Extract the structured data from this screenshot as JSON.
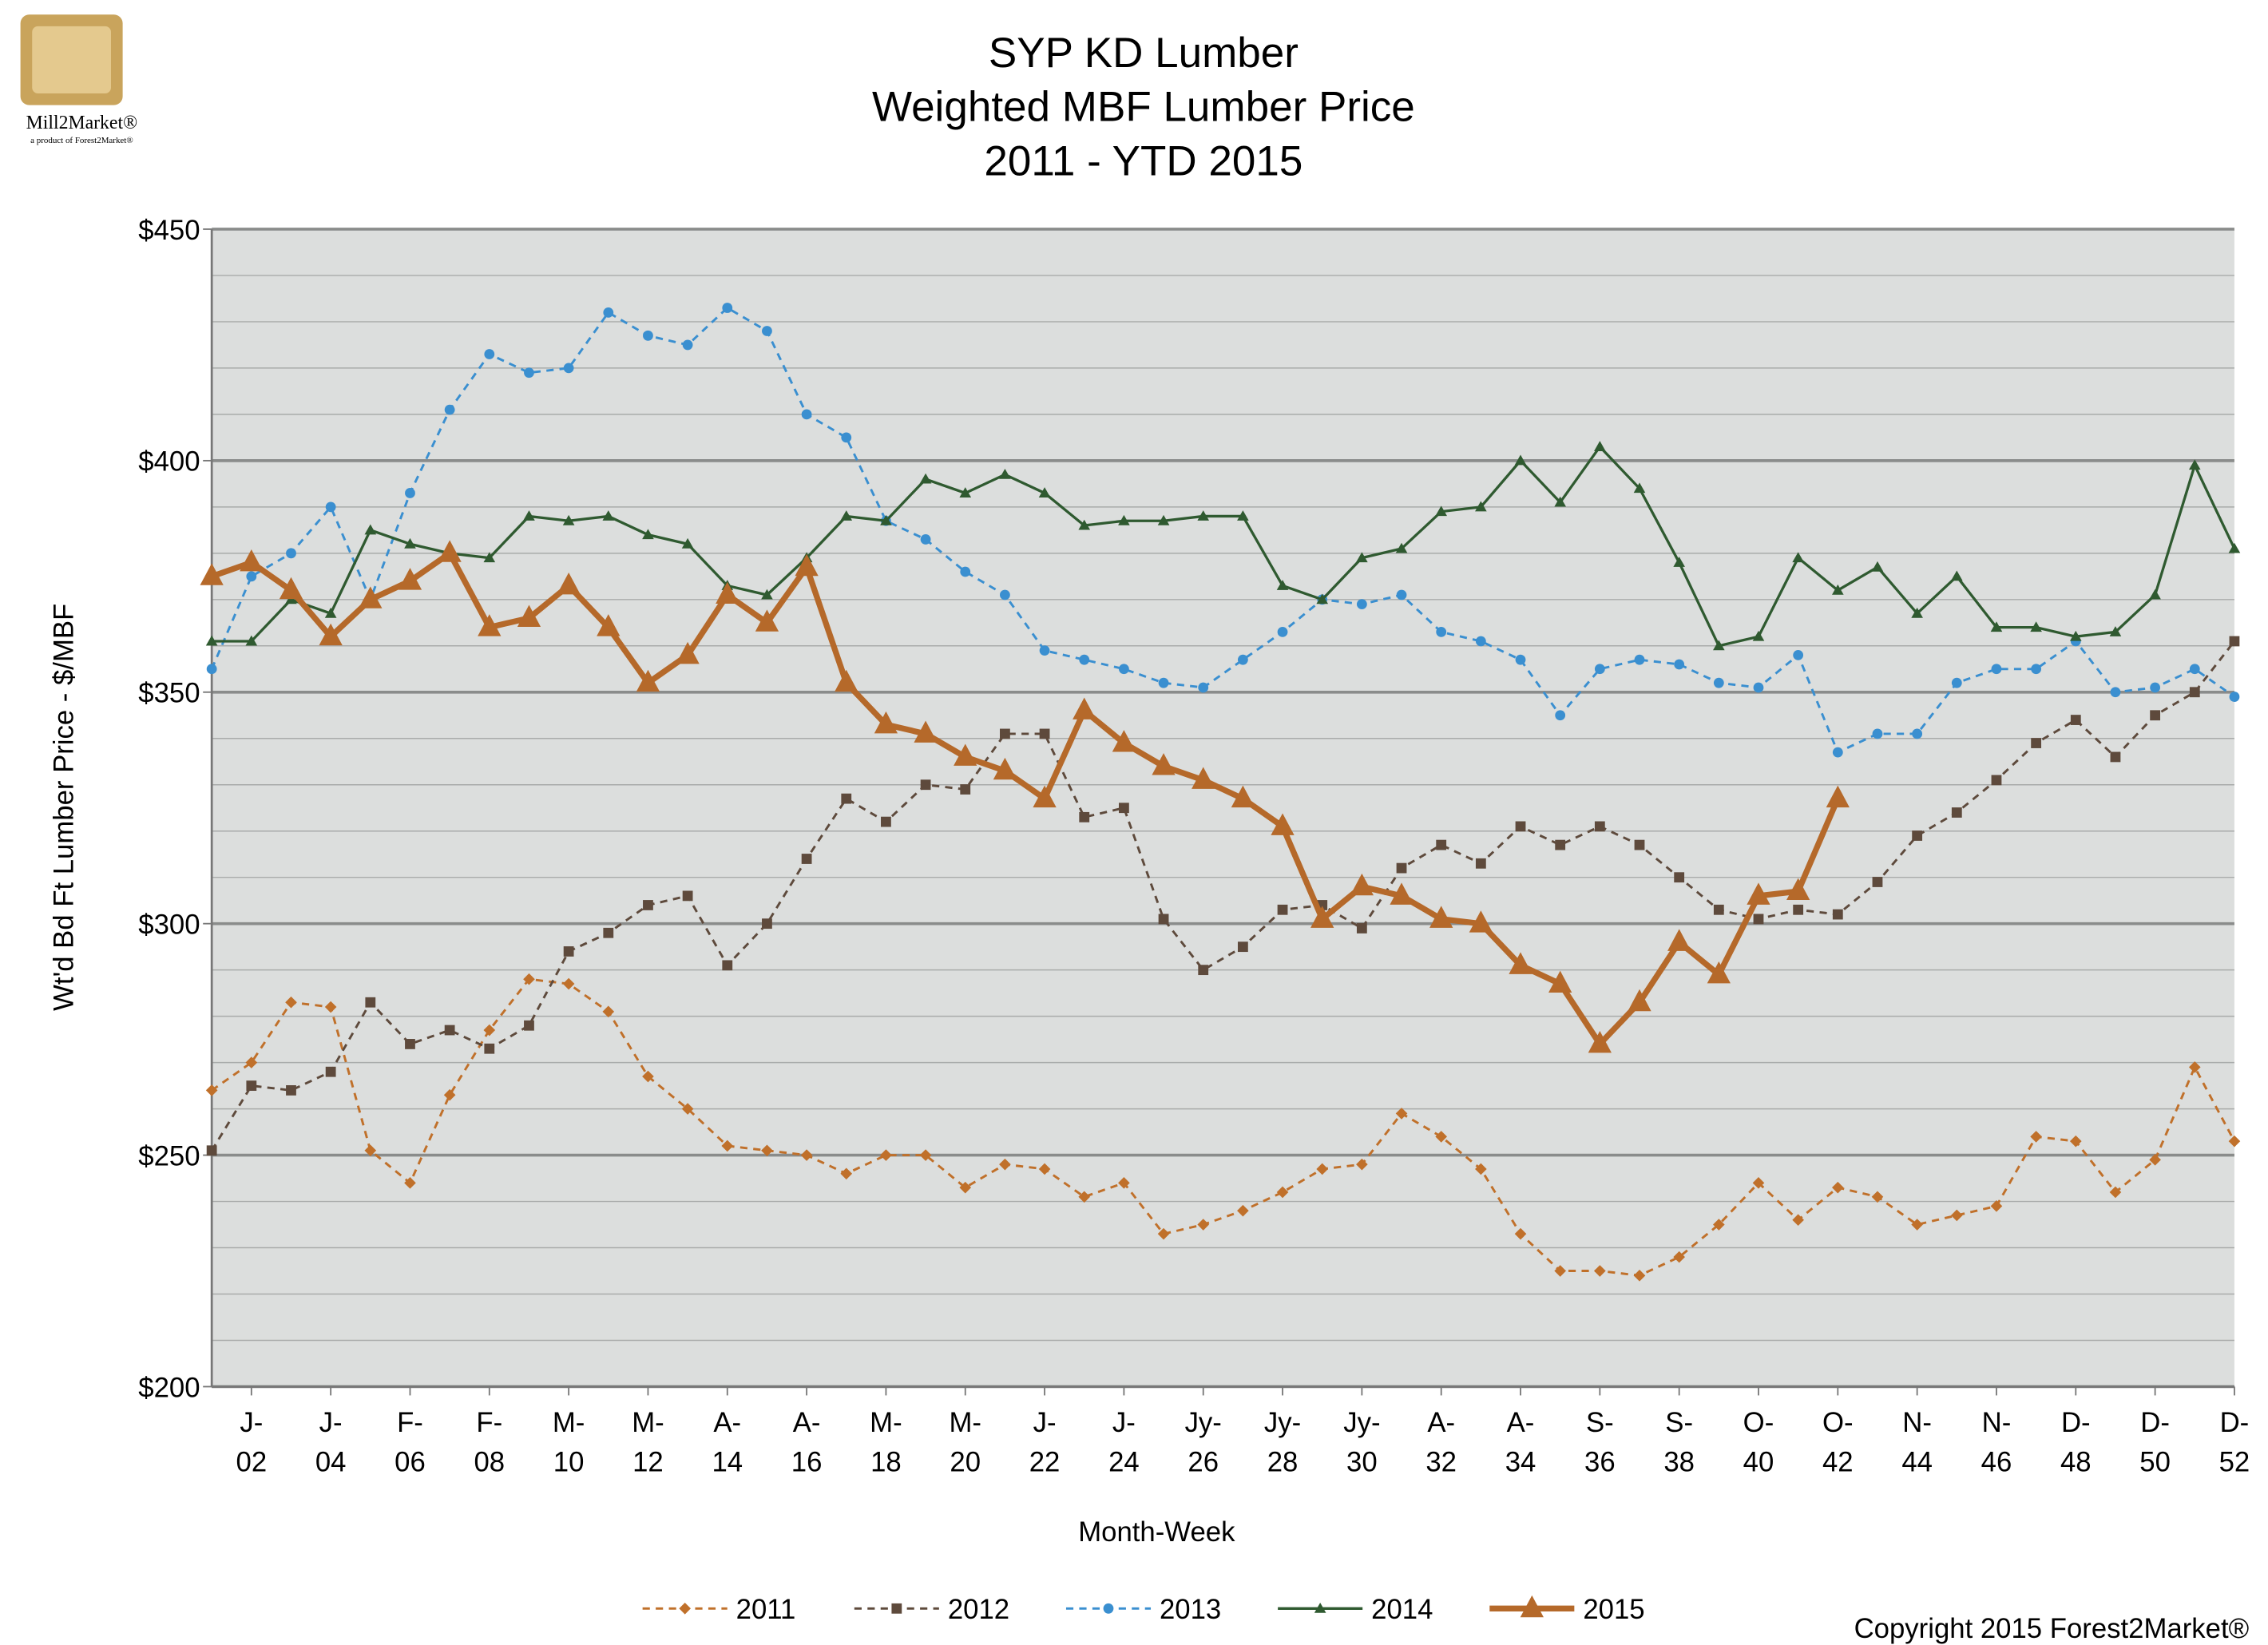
{
  "logo": {
    "name": "Mill2Market®",
    "tagline": "a product of Forest2Market®"
  },
  "copyright": "Copyright 2015 Forest2Market®",
  "chart_data": {
    "type": "line",
    "title": [
      "SYP KD Lumber",
      "Weighted MBF Lumber Price",
      "2011 - YTD 2015"
    ],
    "x_label": "Month-Week",
    "y_label": "Wt'd Bd Ft Lumber Price - $/MBF",
    "x": [
      1,
      2,
      3,
      4,
      5,
      6,
      7,
      8,
      9,
      10,
      11,
      12,
      13,
      14,
      15,
      16,
      17,
      18,
      19,
      20,
      21,
      22,
      23,
      24,
      25,
      26,
      27,
      28,
      29,
      30,
      31,
      32,
      33,
      34,
      35,
      36,
      37,
      38,
      39,
      40,
      41,
      42,
      43,
      44,
      45,
      46,
      47,
      48,
      49,
      50,
      51,
      52
    ],
    "xlim": [
      1,
      52
    ],
    "xticks": [
      {
        "value": 2,
        "label": [
          "J-",
          "02"
        ]
      },
      {
        "value": 4,
        "label": [
          "J-",
          "04"
        ]
      },
      {
        "value": 6,
        "label": [
          "F-",
          "06"
        ]
      },
      {
        "value": 8,
        "label": [
          "F-",
          "08"
        ]
      },
      {
        "value": 10,
        "label": [
          "M-",
          "10"
        ]
      },
      {
        "value": 12,
        "label": [
          "M-",
          "12"
        ]
      },
      {
        "value": 14,
        "label": [
          "A-",
          "14"
        ]
      },
      {
        "value": 16,
        "label": [
          "A-",
          "16"
        ]
      },
      {
        "value": 18,
        "label": [
          "M-",
          "18"
        ]
      },
      {
        "value": 20,
        "label": [
          "M-",
          "20"
        ]
      },
      {
        "value": 22,
        "label": [
          "J-",
          "22"
        ]
      },
      {
        "value": 24,
        "label": [
          "J-",
          "24"
        ]
      },
      {
        "value": 26,
        "label": [
          "Jy-",
          "26"
        ]
      },
      {
        "value": 28,
        "label": [
          "Jy-",
          "28"
        ]
      },
      {
        "value": 30,
        "label": [
          "Jy-",
          "30"
        ]
      },
      {
        "value": 32,
        "label": [
          "A-",
          "32"
        ]
      },
      {
        "value": 34,
        "label": [
          "A-",
          "34"
        ]
      },
      {
        "value": 36,
        "label": [
          "S-",
          "36"
        ]
      },
      {
        "value": 38,
        "label": [
          "S-",
          "38"
        ]
      },
      {
        "value": 40,
        "label": [
          "O-",
          "40"
        ]
      },
      {
        "value": 42,
        "label": [
          "O-",
          "42"
        ]
      },
      {
        "value": 44,
        "label": [
          "N-",
          "44"
        ]
      },
      {
        "value": 46,
        "label": [
          "N-",
          "46"
        ]
      },
      {
        "value": 48,
        "label": [
          "D-",
          "48"
        ]
      },
      {
        "value": 50,
        "label": [
          "D-",
          "50"
        ]
      },
      {
        "value": 52,
        "label": [
          "D-",
          "52"
        ]
      }
    ],
    "ylim": [
      200,
      450
    ],
    "yticks": [
      {
        "value": 200,
        "label": "$200"
      },
      {
        "value": 250,
        "label": "$250"
      },
      {
        "value": 300,
        "label": "$300"
      },
      {
        "value": 350,
        "label": "$350"
      },
      {
        "value": 400,
        "label": "$400"
      },
      {
        "value": 450,
        "label": "$450"
      }
    ],
    "minor_yticks": [
      210,
      220,
      230,
      240,
      260,
      270,
      280,
      290,
      310,
      320,
      330,
      340,
      360,
      370,
      380,
      390,
      410,
      420,
      430,
      440
    ],
    "grid": true,
    "legend": "bottom",
    "series": [
      {
        "name": "2011",
        "color": "#c0702a",
        "marker": "diamond",
        "dashed": true,
        "width": 1.6,
        "values": [
          264,
          270,
          283,
          282,
          251,
          244,
          263,
          277,
          288,
          287,
          281,
          267,
          260,
          252,
          251,
          250,
          246,
          250,
          250,
          243,
          248,
          247,
          241,
          244,
          233,
          235,
          238,
          242,
          247,
          248,
          259,
          254,
          247,
          233,
          225,
          225,
          224,
          228,
          235,
          244,
          236,
          243,
          241,
          235,
          237,
          239,
          254,
          253,
          242,
          249,
          269,
          253
        ]
      },
      {
        "name": "2012",
        "color": "#5e4a3c",
        "marker": "square",
        "dashed": true,
        "width": 1.6,
        "values": [
          251,
          265,
          264,
          268,
          283,
          274,
          277,
          273,
          278,
          294,
          298,
          304,
          306,
          291,
          300,
          314,
          327,
          322,
          330,
          329,
          341,
          341,
          323,
          325,
          301,
          290,
          295,
          303,
          304,
          299,
          312,
          317,
          313,
          321,
          317,
          321,
          317,
          310,
          303,
          301,
          303,
          302,
          309,
          319,
          324,
          331,
          339,
          344,
          336,
          345,
          350,
          361
        ]
      },
      {
        "name": "2013",
        "color": "#3a8fd0",
        "marker": "circle",
        "dashed": true,
        "width": 1.6,
        "values": [
          355,
          375,
          380,
          390,
          370,
          393,
          411,
          423,
          419,
          420,
          432,
          427,
          425,
          433,
          428,
          410,
          405,
          387,
          383,
          376,
          371,
          359,
          357,
          355,
          352,
          351,
          357,
          363,
          370,
          369,
          371,
          363,
          361,
          357,
          345,
          355,
          357,
          356,
          352,
          351,
          358,
          337,
          341,
          341,
          352,
          355,
          355,
          361,
          350,
          351,
          355,
          349
        ]
      },
      {
        "name": "2014",
        "color": "#2f5a30",
        "marker": "triangle",
        "dashed": false,
        "width": 1.8,
        "values": [
          361,
          361,
          370,
          367,
          385,
          382,
          380,
          379,
          388,
          387,
          388,
          384,
          382,
          373,
          371,
          379,
          388,
          387,
          396,
          393,
          397,
          393,
          386,
          387,
          387,
          388,
          388,
          373,
          370,
          379,
          381,
          389,
          390,
          400,
          391,
          403,
          394,
          378,
          360,
          362,
          379,
          372,
          377,
          367,
          375,
          364,
          364,
          362,
          363,
          371,
          399,
          381
        ]
      },
      {
        "name": "2015",
        "color": "#b5692a",
        "marker": "big-triangle",
        "dashed": false,
        "width": 4,
        "values": [
          375,
          378,
          372,
          362,
          370,
          374,
          380,
          364,
          366,
          373,
          364,
          352,
          358,
          371,
          365,
          377,
          352,
          343,
          341,
          336,
          333,
          327,
          346,
          339,
          334,
          331,
          327,
          321,
          301,
          308,
          306,
          301,
          300,
          291,
          287,
          274,
          283,
          296,
          289,
          306,
          307,
          327,
          null,
          null,
          null,
          null,
          null,
          null,
          null,
          null,
          null,
          null
        ]
      }
    ]
  }
}
